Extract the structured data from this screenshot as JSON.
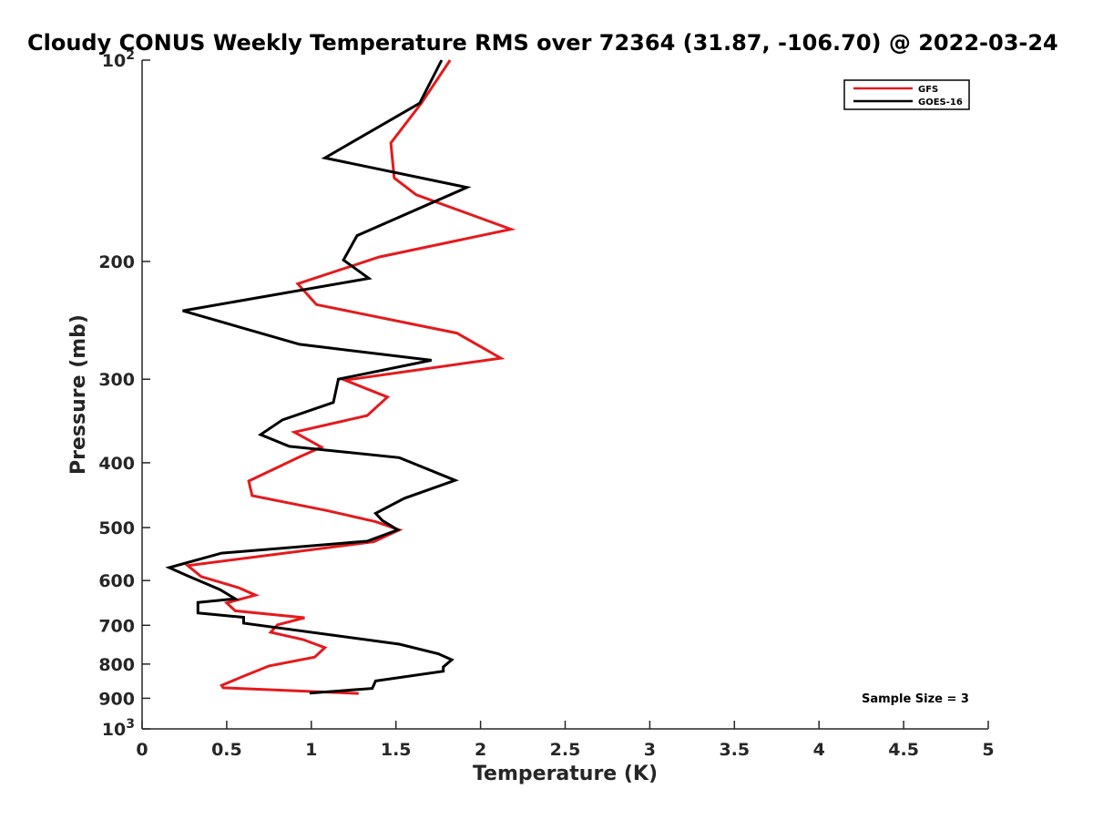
{
  "chart_data": {
    "type": "line",
    "title": "Cloudy CONUS Weekly Temperature RMS over 72364 (31.87, -106.70) @ 2022-03-24",
    "xlabel": "Temperature (K)",
    "ylabel": "Pressure (mb)",
    "xlim": [
      0,
      5
    ],
    "ylim": [
      100,
      1000
    ],
    "y_scale": "log",
    "y_reversed": true,
    "xticks": [
      0,
      0.5,
      1,
      1.5,
      2,
      2.5,
      3,
      3.5,
      4,
      4.5,
      5
    ],
    "xtick_labels": [
      "0",
      "0.5",
      "1",
      "1.5",
      "2",
      "2.5",
      "3",
      "3.5",
      "4",
      "4.5",
      "5"
    ],
    "yticks": [
      100,
      200,
      300,
      400,
      500,
      600,
      700,
      800,
      900,
      1000
    ],
    "ytick_labels": [
      {
        "base": "10",
        "exp": "2"
      },
      {
        "base": "200",
        "exp": ""
      },
      {
        "base": "300",
        "exp": ""
      },
      {
        "base": "400",
        "exp": ""
      },
      {
        "base": "500",
        "exp": ""
      },
      {
        "base": "600",
        "exp": ""
      },
      {
        "base": "700",
        "exp": ""
      },
      {
        "base": "800",
        "exp": ""
      },
      {
        "base": "900",
        "exp": ""
      },
      {
        "base": "10",
        "exp": "3"
      }
    ],
    "grid": false,
    "legend_position": "top-right",
    "annotation": "Sample Size = 3",
    "series": [
      {
        "name": "GFS",
        "color": "#e41a1c",
        "points": [
          [
            1.82,
            100
          ],
          [
            1.65,
            116
          ],
          [
            1.47,
            133
          ],
          [
            1.49,
            150
          ],
          [
            1.62,
            159
          ],
          [
            2.18,
            179
          ],
          [
            1.4,
            197
          ],
          [
            0.92,
            216
          ],
          [
            1.03,
            232
          ],
          [
            1.86,
            256
          ],
          [
            2.12,
            279
          ],
          [
            1.2,
            301
          ],
          [
            1.45,
            319
          ],
          [
            1.33,
            340
          ],
          [
            0.9,
            360
          ],
          [
            1.06,
            379
          ],
          [
            0.93,
            392
          ],
          [
            0.63,
            426
          ],
          [
            0.65,
            448
          ],
          [
            1.1,
            472
          ],
          [
            1.38,
            490
          ],
          [
            1.52,
            504
          ],
          [
            1.37,
            525
          ],
          [
            0.27,
            570
          ],
          [
            0.35,
            592
          ],
          [
            0.57,
            615
          ],
          [
            0.67,
            631
          ],
          [
            0.5,
            648
          ],
          [
            0.55,
            666
          ],
          [
            0.96,
            682
          ],
          [
            0.8,
            699
          ],
          [
            0.76,
            717
          ],
          [
            0.95,
            735
          ],
          [
            1.08,
            756
          ],
          [
            1.02,
            781
          ],
          [
            0.75,
            805
          ],
          [
            0.6,
            834
          ],
          [
            0.47,
            861
          ],
          [
            0.48,
            868
          ],
          [
            1.28,
            885
          ]
        ]
      },
      {
        "name": "GOES-16",
        "color": "#000000",
        "points": [
          [
            1.77,
            100
          ],
          [
            1.64,
            116
          ],
          [
            1.08,
            140
          ],
          [
            1.92,
            155
          ],
          [
            1.27,
            183
          ],
          [
            1.19,
            199
          ],
          [
            1.34,
            212
          ],
          [
            0.24,
            237
          ],
          [
            0.93,
            266
          ],
          [
            1.71,
            281
          ],
          [
            1.16,
            300
          ],
          [
            1.13,
            325
          ],
          [
            0.83,
            345
          ],
          [
            0.7,
            363
          ],
          [
            0.87,
            378
          ],
          [
            1.52,
            393
          ],
          [
            1.85,
            425
          ],
          [
            1.55,
            452
          ],
          [
            1.38,
            476
          ],
          [
            1.42,
            488
          ],
          [
            1.51,
            504
          ],
          [
            1.33,
            524
          ],
          [
            0.47,
            546
          ],
          [
            0.16,
            574
          ],
          [
            0.26,
            589
          ],
          [
            0.46,
            619
          ],
          [
            0.55,
            639
          ],
          [
            0.33,
            647
          ],
          [
            0.33,
            671
          ],
          [
            0.6,
            681
          ],
          [
            0.6,
            695
          ],
          [
            1.52,
            747
          ],
          [
            1.75,
            772
          ],
          [
            1.83,
            788
          ],
          [
            1.78,
            808
          ],
          [
            1.78,
            820
          ],
          [
            1.38,
            848
          ],
          [
            1.36,
            870
          ],
          [
            0.99,
            884
          ]
        ]
      }
    ]
  }
}
